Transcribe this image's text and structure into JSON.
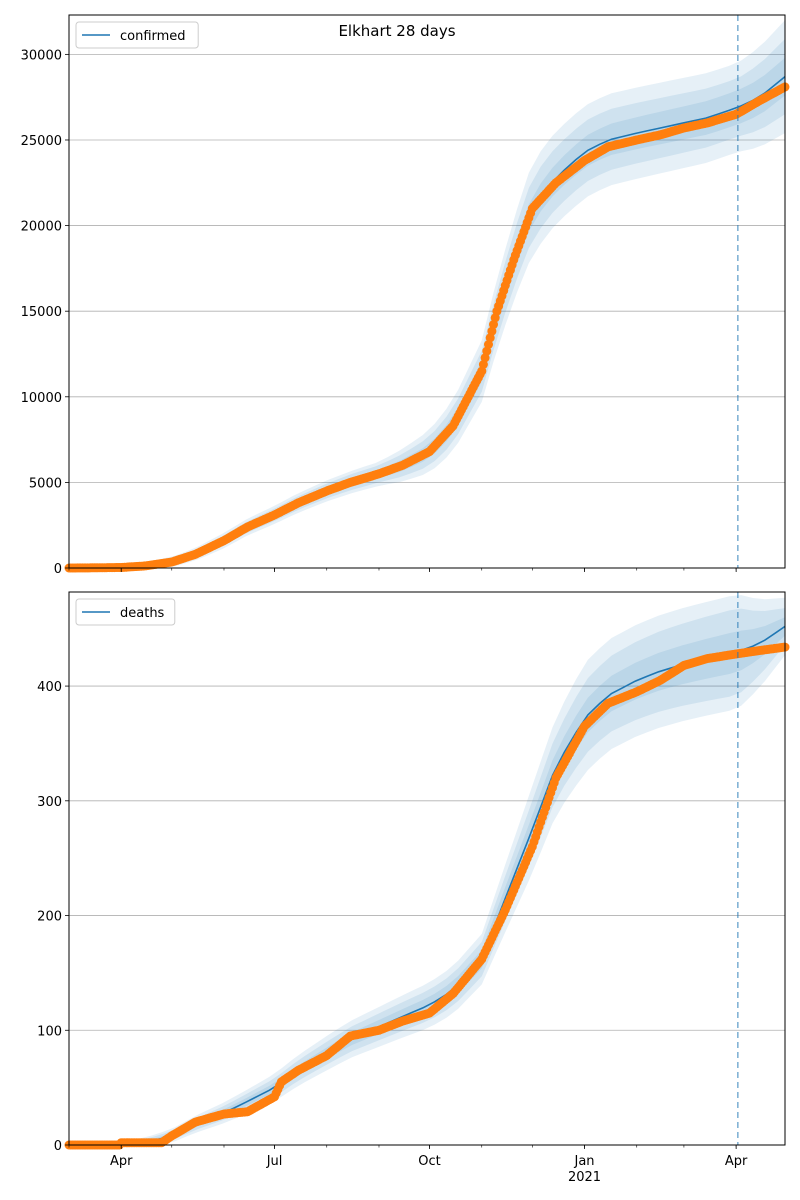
{
  "figure": {
    "suptitle": "Elkhart 28 days"
  },
  "colors": {
    "model_line": "#1f77b4",
    "band": "#1f77b4",
    "observed_points": "#ff7f0e",
    "forecast_divider": "#1f77b4",
    "grid": "#b0b0b0"
  },
  "chart_data": [
    {
      "type": "line",
      "legend": [
        "confirmed"
      ],
      "legend_location": "top-left",
      "x_axis": {
        "type": "date",
        "range": [
          "2020-03-01",
          "2021-04-30"
        ],
        "tick_labels": [
          "Apr",
          "Jul",
          "Oct",
          "Jan",
          "Apr"
        ],
        "tick_dates": [
          "2020-04-01",
          "2020-07-01",
          "2020-10-01",
          "2021-01-01",
          "2021-04-01"
        ],
        "year_label": "2021"
      },
      "y_axis": {
        "range": [
          0,
          32300
        ],
        "ticks": [
          0,
          5000,
          10000,
          15000,
          20000,
          25000,
          30000
        ],
        "grid": true
      },
      "forecast_start": "2021-04-02",
      "model_series": {
        "name": "confirmed",
        "x": [
          "2020-03-01",
          "2020-04-01",
          "2020-04-15",
          "2020-05-01",
          "2020-05-15",
          "2020-06-01",
          "2020-06-15",
          "2020-07-01",
          "2020-07-15",
          "2020-08-01",
          "2020-08-15",
          "2020-09-01",
          "2020-09-15",
          "2020-10-01",
          "2020-10-15",
          "2020-11-01",
          "2020-11-10",
          "2020-11-20",
          "2020-12-01",
          "2020-12-15",
          "2021-01-01",
          "2021-01-15",
          "2021-02-01",
          "2021-02-15",
          "2021-03-01",
          "2021-03-15",
          "2021-04-02",
          "2021-04-15",
          "2021-04-30"
        ],
        "y": [
          0,
          30,
          120,
          350,
          800,
          1600,
          2400,
          3100,
          3800,
          4500,
          5000,
          5500,
          6000,
          6800,
          8300,
          11500,
          14800,
          18000,
          21000,
          22800,
          24300,
          25000,
          25400,
          25700,
          26000,
          26300,
          26900,
          27500,
          28700
        ]
      },
      "band_half_widths": [
        {
          "x": [
            "2020-03-01",
            "2020-06-01",
            "2020-09-01",
            "2020-11-01",
            "2020-12-01",
            "2021-01-01",
            "2021-04-02",
            "2021-04-30"
          ],
          "w": [
            0,
            150,
            250,
            600,
            800,
            900,
            1000,
            1100
          ]
        },
        {
          "x": [
            "2020-03-01",
            "2020-06-01",
            "2020-09-01",
            "2020-11-01",
            "2020-12-01",
            "2021-01-01",
            "2021-04-02",
            "2021-04-30"
          ],
          "w": [
            0,
            300,
            500,
            1200,
            1800,
            1800,
            1700,
            2200
          ]
        },
        {
          "x": [
            "2020-03-01",
            "2020-06-01",
            "2020-09-01",
            "2020-11-01",
            "2020-12-01",
            "2021-01-01",
            "2021-04-02",
            "2021-04-30"
          ],
          "w": [
            0,
            450,
            700,
            1800,
            2700,
            2700,
            2600,
            3300
          ]
        }
      ],
      "observed": {
        "x": [
          "2020-03-01",
          "2020-03-15",
          "2020-04-01",
          "2020-04-15",
          "2020-05-01",
          "2020-05-15",
          "2020-06-01",
          "2020-06-15",
          "2020-07-01",
          "2020-07-15",
          "2020-08-01",
          "2020-08-15",
          "2020-09-01",
          "2020-09-15",
          "2020-10-01",
          "2020-10-15",
          "2020-11-01",
          "2020-11-10",
          "2020-11-20",
          "2020-12-01",
          "2020-12-15",
          "2021-01-01",
          "2021-01-15",
          "2021-02-01",
          "2021-02-15",
          "2021-03-01",
          "2021-03-15",
          "2021-04-01",
          "2021-04-15",
          "2021-04-30"
        ],
        "y": [
          0,
          10,
          30,
          120,
          350,
          800,
          1600,
          2400,
          3100,
          3800,
          4500,
          5000,
          5500,
          6000,
          6800,
          8300,
          11500,
          15000,
          18000,
          21000,
          22500,
          23800,
          24600,
          25000,
          25300,
          25700,
          26000,
          26500,
          27300,
          28100
        ]
      }
    },
    {
      "type": "line",
      "legend": [
        "deaths"
      ],
      "legend_location": "top-left",
      "x_axis": {
        "type": "date",
        "range": [
          "2020-03-01",
          "2021-04-30"
        ],
        "tick_labels": [
          "Apr",
          "Jul",
          "Oct",
          "Jan",
          "Apr"
        ],
        "tick_dates": [
          "2020-04-01",
          "2020-07-01",
          "2020-10-01",
          "2021-01-01",
          "2021-04-01"
        ],
        "year_label": "2021"
      },
      "y_axis": {
        "range": [
          0,
          482
        ],
        "ticks": [
          0,
          100,
          200,
          300,
          400
        ],
        "grid": true
      },
      "forecast_start": "2021-04-02",
      "model_series": {
        "name": "deaths",
        "x": [
          "2020-03-01",
          "2020-04-01",
          "2020-04-15",
          "2020-05-01",
          "2020-05-15",
          "2020-06-01",
          "2020-06-15",
          "2020-07-01",
          "2020-07-15",
          "2020-08-01",
          "2020-08-15",
          "2020-09-01",
          "2020-09-15",
          "2020-10-01",
          "2020-10-15",
          "2020-11-01",
          "2020-11-15",
          "2020-12-01",
          "2020-12-15",
          "2021-01-01",
          "2021-01-15",
          "2021-02-01",
          "2021-02-15",
          "2021-03-01",
          "2021-03-15",
          "2021-04-02",
          "2021-04-15",
          "2021-04-30"
        ],
        "y": [
          0,
          0,
          2,
          8,
          18,
          28,
          38,
          50,
          65,
          80,
          92,
          103,
          112,
          122,
          135,
          162,
          215,
          275,
          330,
          372,
          392,
          405,
          413,
          419,
          424,
          430,
          437,
          452
        ]
      },
      "band_half_widths": [
        {
          "x": [
            "2020-03-01",
            "2020-05-01",
            "2020-08-01",
            "2020-11-01",
            "2020-12-01",
            "2021-01-01",
            "2021-04-02",
            "2021-04-30"
          ],
          "w": [
            0,
            2,
            5,
            8,
            12,
            15,
            18,
            8
          ]
        },
        {
          "x": [
            "2020-03-01",
            "2020-05-01",
            "2020-08-01",
            "2020-11-01",
            "2020-12-01",
            "2021-01-01",
            "2021-04-02",
            "2021-04-30"
          ],
          "w": [
            0,
            4,
            10,
            15,
            25,
            32,
            38,
            16
          ]
        },
        {
          "x": [
            "2020-03-01",
            "2020-05-01",
            "2020-08-01",
            "2020-11-01",
            "2020-12-01",
            "2021-01-01",
            "2021-04-02",
            "2021-04-30"
          ],
          "w": [
            0,
            6,
            15,
            22,
            38,
            48,
            50,
            25
          ]
        }
      ],
      "observed": {
        "x": [
          "2020-03-01",
          "2020-03-31",
          "2020-04-01",
          "2020-04-25",
          "2020-05-01",
          "2020-05-15",
          "2020-06-01",
          "2020-06-15",
          "2020-07-01",
          "2020-07-05",
          "2020-07-15",
          "2020-08-01",
          "2020-08-15",
          "2020-09-01",
          "2020-09-15",
          "2020-10-01",
          "2020-10-15",
          "2020-11-01",
          "2020-11-15",
          "2020-12-01",
          "2020-12-15",
          "2021-01-01",
          "2021-01-15",
          "2021-02-01",
          "2021-02-15",
          "2021-03-01",
          "2021-03-15",
          "2021-04-01",
          "2021-04-15",
          "2021-04-30"
        ],
        "y": [
          0,
          0,
          2,
          2,
          8,
          20,
          27,
          29,
          42,
          55,
          65,
          78,
          95,
          100,
          108,
          115,
          132,
          162,
          205,
          260,
          320,
          365,
          385,
          395,
          405,
          418,
          424,
          428,
          431,
          434
        ]
      }
    }
  ]
}
